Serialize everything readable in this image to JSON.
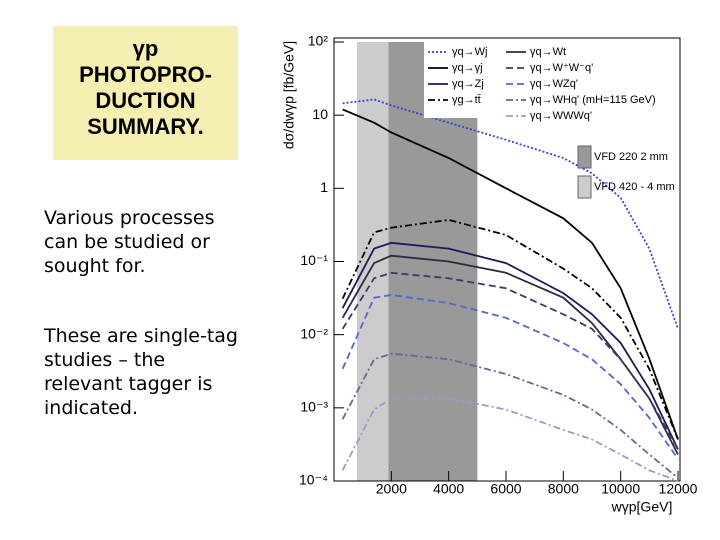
{
  "slide": {
    "title_lines": [
      "γp",
      "PHOTOPRO-",
      "DUCTION",
      "SUMMARY."
    ],
    "paragraphs": [
      [
        "Various processes",
        "can be studied or",
        "sought for."
      ],
      [
        "These are single-tag",
        "studies – the",
        "relevant tagger is",
        "indicated."
      ]
    ]
  },
  "chart_data": {
    "type": "line",
    "ylabel": "dσ/dwγp [fb/GeV]",
    "xlabel": "wγp[GeV]",
    "log_y": true,
    "legend": "upper right",
    "xlim": [
      0,
      12000
    ],
    "xticks": [
      2000,
      4000,
      6000,
      8000,
      10000,
      12000
    ],
    "ylim": [
      0.0001,
      100
    ],
    "yticks": [
      {
        "value": 100,
        "label": "10²"
      },
      10,
      1,
      {
        "value": 0.1,
        "label": "10⁻¹"
      },
      {
        "value": 0.01,
        "label": "10⁻²"
      },
      {
        "value": 0.001,
        "label": "10⁻³"
      },
      {
        "value": 0.0001,
        "label": "10⁻⁴"
      }
    ],
    "bands": [
      {
        "label": "VFD 220   2 mm",
        "range": [
          1900,
          5000
        ],
        "color": "#999999"
      },
      {
        "label": "VFD 420 - 4 mm",
        "range": [
          800,
          1900
        ],
        "color": "#cccccc"
      }
    ],
    "x": [
      300,
      1400,
      2000,
      4000,
      6000,
      8000,
      9000,
      10000,
      11000,
      12000
    ],
    "series": [
      {
        "name": "γq→Wj",
        "color": "#3344cc",
        "style": "dotted",
        "values": [
          14.5,
          16.4,
          13.6,
          7.9,
          4.6,
          2.6,
          1.6,
          0.74,
          0.15,
          0.012
        ]
      },
      {
        "name": "γq→γj",
        "color": "#000000",
        "style": "solid",
        "values": [
          12,
          7.9,
          5.8,
          2.6,
          1.0,
          0.39,
          0.18,
          0.043,
          0.0047,
          0.00037
        ]
      },
      {
        "name": "γq→Zj",
        "color": "#1a1a5a",
        "style": "solid",
        "values": [
          0.023,
          0.15,
          0.18,
          0.15,
          0.095,
          0.037,
          0.019,
          0.0077,
          0.0018,
          0.00027
        ]
      },
      {
        "name": "γg→tt̄",
        "color": "#000000",
        "style": "dashdot",
        "values": [
          0.031,
          0.25,
          0.29,
          0.37,
          0.23,
          0.08,
          0.043,
          0.017,
          0.0034,
          0.00037
        ]
      },
      {
        "name": "γq→Wt",
        "color": "#2a2a40",
        "style": "solid",
        "values": [
          0.017,
          0.095,
          0.12,
          0.1,
          0.07,
          0.032,
          0.0144,
          0.0046,
          0.00134,
          0.00023
        ]
      },
      {
        "name": "γq→W⁺W⁻q'",
        "color": "#3a3a6a",
        "style": "dashed",
        "values": [
          0.012,
          0.059,
          0.07,
          0.059,
          0.043,
          0.019,
          0.012,
          0.0046,
          0.00134,
          0.00027
        ]
      },
      {
        "name": "γq→WZq'",
        "color": "#5566cc",
        "style": "dashed",
        "values": [
          0.0034,
          0.032,
          0.035,
          0.027,
          0.017,
          0.0077,
          0.0046,
          0.0021,
          0.00073,
          0.0002
        ]
      },
      {
        "name": "γq→WHq' (mH=115 GeV)",
        "color": "#666699",
        "style": "dashdot",
        "values": [
          0.0007,
          0.0046,
          0.0055,
          0.0046,
          0.0029,
          0.0015,
          0.00095,
          0.0005,
          0.00023,
          0.00011
        ]
      },
      {
        "name": "γq→WWWq'",
        "color": "#9999cc",
        "style": "dashdot",
        "values": [
          0.00014,
          0.00095,
          0.00134,
          0.00134,
          0.00095,
          0.0005,
          0.00037,
          0.00023,
          0.00014,
          0.0001
        ]
      }
    ]
  }
}
